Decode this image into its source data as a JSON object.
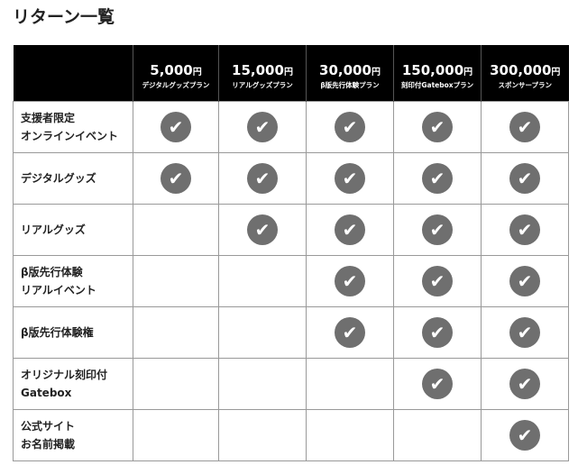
{
  "title": "リターン一覧",
  "yen": "円",
  "plans": [
    {
      "price": "5,000",
      "name": "デジタルグッズプラン"
    },
    {
      "price": "15,000",
      "name": "リアルグッズプラン"
    },
    {
      "price": "30,000",
      "name": "β版先行体験プラン"
    },
    {
      "price": "150,000",
      "name": "刻印付Gateboxプラン"
    },
    {
      "price": "300,000",
      "name": "スポンサープラン"
    }
  ],
  "rows": [
    {
      "label": [
        "支援者限定",
        "オンラインイベント"
      ],
      "included": [
        true,
        true,
        true,
        true,
        true
      ]
    },
    {
      "label": [
        "デジタルグッズ"
      ],
      "included": [
        true,
        true,
        true,
        true,
        true
      ]
    },
    {
      "label": [
        "リアルグッズ"
      ],
      "included": [
        false,
        true,
        true,
        true,
        true
      ]
    },
    {
      "label": [
        "β版先行体験",
        "リアルイベント"
      ],
      "included": [
        false,
        false,
        true,
        true,
        true
      ]
    },
    {
      "label": [
        "β版先行体験権"
      ],
      "included": [
        false,
        false,
        true,
        true,
        true
      ]
    },
    {
      "label": [
        "オリジナル刻印付",
        "Gatebox"
      ],
      "included": [
        false,
        false,
        false,
        true,
        true
      ]
    },
    {
      "label": [
        "公式サイト",
        "お名前掲載"
      ],
      "included": [
        false,
        false,
        false,
        false,
        true
      ]
    }
  ],
  "check_icon": "check-circle-icon",
  "check_color": "#6f6f6f"
}
